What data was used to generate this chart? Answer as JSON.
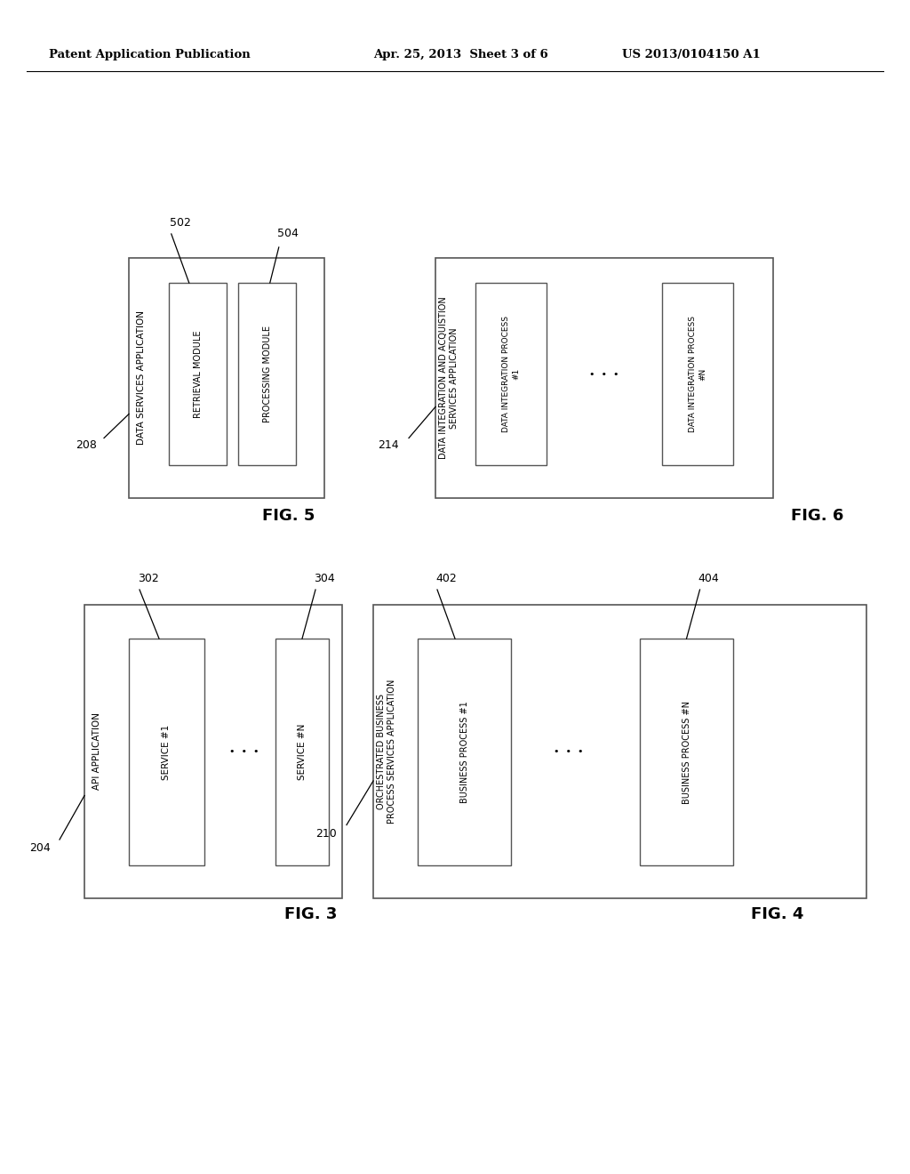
{
  "bg_color": "#ffffff",
  "header_left": "Patent Application Publication",
  "header_mid": "Apr. 25, 2013  Sheet 3 of 6",
  "header_right": "US 2013/0104150 A1",
  "fig5": {
    "label": "FIG. 5",
    "ref_outer": "208",
    "ref_inner1": "502",
    "ref_inner2": "504",
    "outer_label": "DATA SERVICES APPLICATION",
    "inner1_label": "RETRIEVAL MODULE",
    "inner2_label": "PROCESSING MODULE"
  },
  "fig6": {
    "label": "FIG. 6",
    "ref_outer": "214",
    "outer_label": "DATA INTEGRATION AND ACQUISTION\nSERVICES APPLICATION",
    "inner1_label": "DATA INTEGRATION PROCESS\n#1",
    "inner2_label": "DATA INTEGRATION PROCESS\n#N"
  },
  "fig3": {
    "label": "FIG. 3",
    "ref_outer": "204",
    "ref_inner1": "302",
    "ref_inner2": "304",
    "outer_label": "API APPLICATION",
    "inner1_label": "SERVICE #1",
    "inner2_label": "SERVICE #N"
  },
  "fig4": {
    "label": "FIG. 4",
    "ref_outer": "210",
    "ref_inner1": "402",
    "ref_inner2": "404",
    "outer_label": "ORCHESTRATED BUSINESS\nPROCESS SERVICES APPLICATION",
    "inner1_label": "BUSINESS PROCESS #1",
    "inner2_label": "BUSINESS PROCESS #N"
  }
}
